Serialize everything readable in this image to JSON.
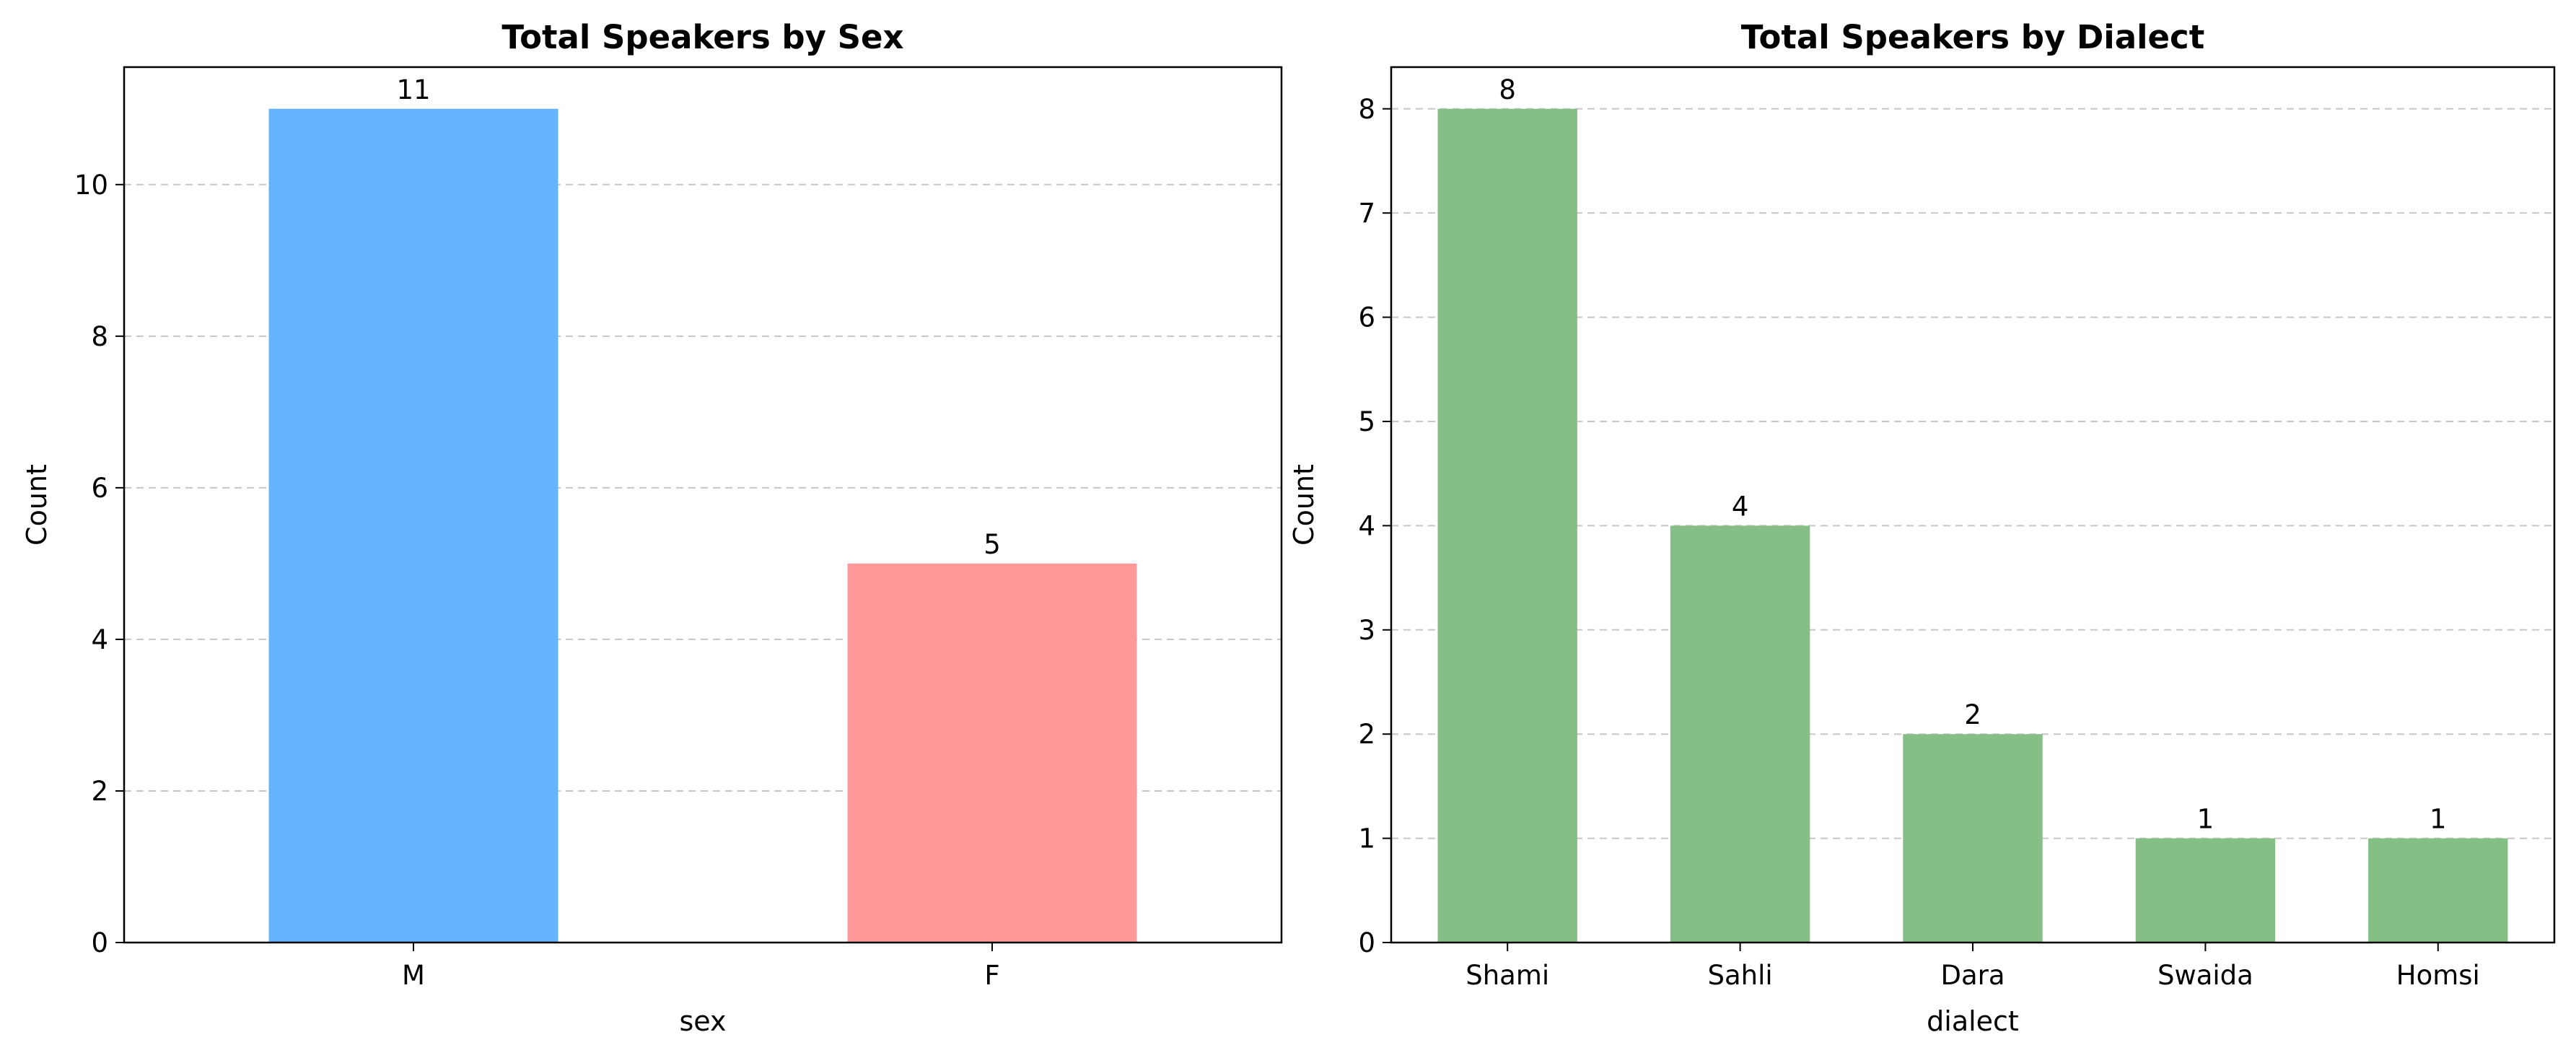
{
  "chart_data": [
    {
      "type": "bar",
      "title": "Total Speakers by Sex",
      "xlabel": "sex",
      "ylabel": "Count",
      "categories": [
        "M",
        "F"
      ],
      "values": [
        11,
        5
      ],
      "colors": [
        "#66b3ff",
        "#ff9999"
      ],
      "ylim": [
        0,
        11.55
      ],
      "yticks": [
        0,
        2,
        4,
        6,
        8,
        10
      ],
      "grid": "y-dashed",
      "data_labels": true
    },
    {
      "type": "bar",
      "title": "Total Speakers by Dialect",
      "xlabel": "dialect",
      "ylabel": "Count",
      "categories": [
        "Shami",
        "Sahli",
        "Dara",
        "Swaida",
        "Homsi"
      ],
      "values": [
        8,
        4,
        2,
        1,
        1
      ],
      "colors": [
        "#86bf86"
      ],
      "ylim": [
        0,
        8.4
      ],
      "yticks": [
        0,
        1,
        2,
        3,
        4,
        5,
        6,
        7,
        8
      ],
      "grid": "y-dashed",
      "data_labels": true
    }
  ]
}
